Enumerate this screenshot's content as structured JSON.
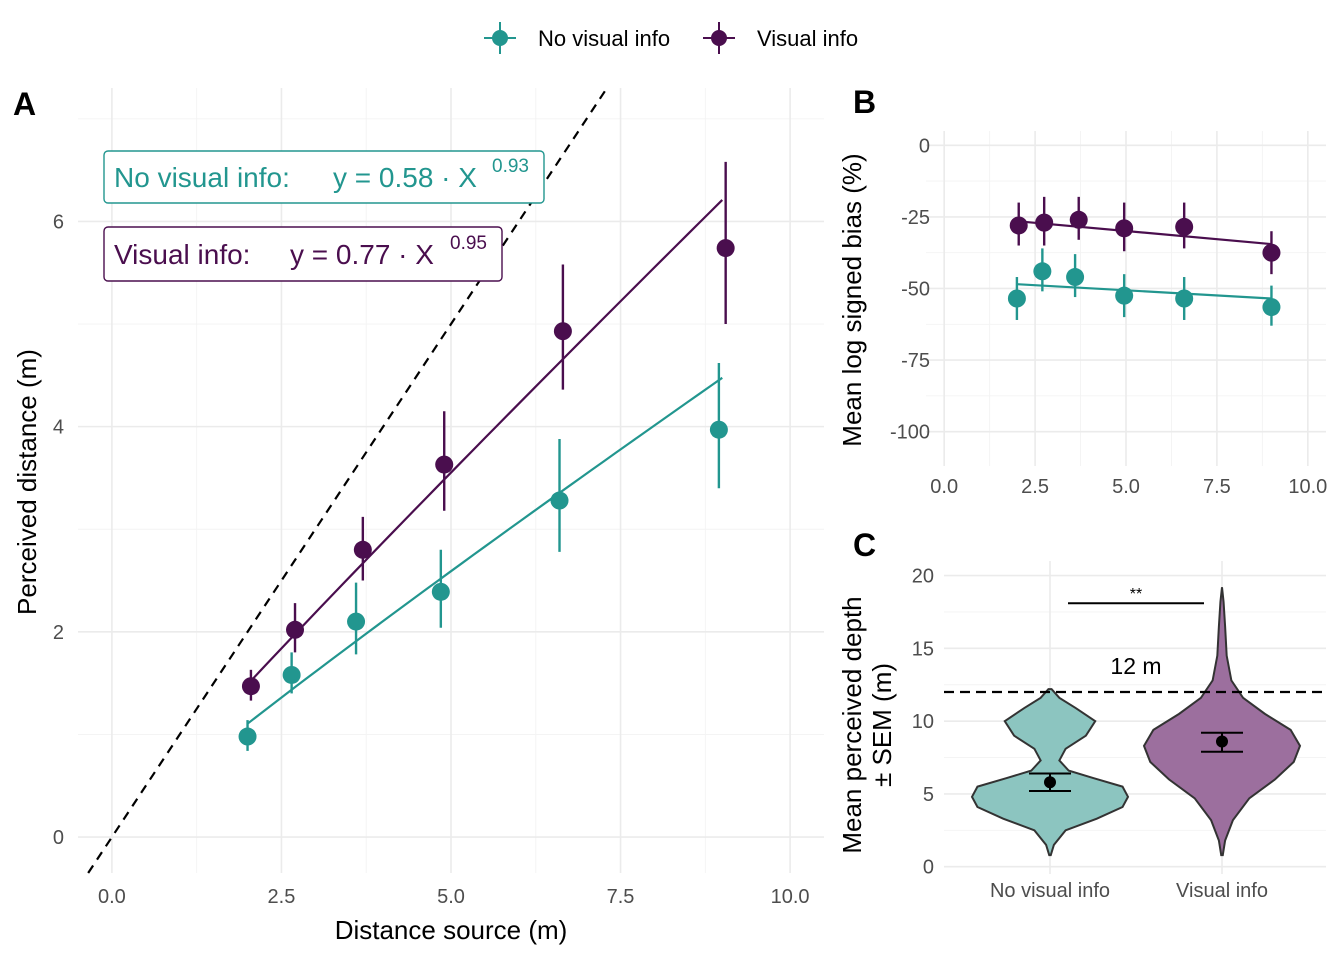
{
  "colors": {
    "no_visual": "#22968F",
    "visual": "#4A0E4E",
    "no_visual_fill": "#8CC5C0",
    "visual_fill": "#9C6F9E",
    "identity_line": "#000000"
  },
  "legend": {
    "items": [
      {
        "label": "No visual info",
        "color": "#22968F"
      },
      {
        "label": "Visual info",
        "color": "#4A0E4E"
      }
    ]
  },
  "chart_data": [
    {
      "panel": "A",
      "type": "scatter",
      "xlabel": "Distance source (m)",
      "ylabel": "Perceived distance (m)",
      "xlim": [
        -0.5,
        10.5
      ],
      "ylim": [
        -0.35,
        7.3
      ],
      "x_ticks": [
        "0.0",
        "2.5",
        "5.0",
        "7.5",
        "10.0"
      ],
      "y_ticks": [
        "0",
        "2",
        "4",
        "6"
      ],
      "x_tick_values": [
        0,
        2.5,
        5,
        7.5,
        10
      ],
      "y_tick_values": [
        0,
        2,
        4,
        6
      ],
      "identity_line": true,
      "grid": true,
      "annotations": [
        {
          "label": "No visual info:",
          "formula_prefix": "y = 0.58 · X",
          "exponent": "0.93",
          "color": "#22968F"
        },
        {
          "label": "Visual info:",
          "formula_prefix": "y = 0.77 · X",
          "exponent": "0.95",
          "color": "#4A0E4E"
        }
      ],
      "series": [
        {
          "name": "No visual info",
          "color": "#22968F",
          "points": [
            {
              "x": 2.0,
              "y": 0.98,
              "lo": 0.84,
              "hi": 1.14
            },
            {
              "x": 2.65,
              "y": 1.58,
              "lo": 1.4,
              "hi": 1.8
            },
            {
              "x": 3.6,
              "y": 2.1,
              "lo": 1.78,
              "hi": 2.48
            },
            {
              "x": 4.85,
              "y": 2.39,
              "lo": 2.04,
              "hi": 2.8
            },
            {
              "x": 6.6,
              "y": 3.28,
              "lo": 2.78,
              "hi": 3.88
            },
            {
              "x": 8.95,
              "y": 3.97,
              "lo": 3.4,
              "hi": 4.62
            }
          ],
          "fit": {
            "a": 0.58,
            "b": 0.93,
            "x_from": 2.0,
            "x_to": 9.0
          }
        },
        {
          "name": "Visual info",
          "color": "#4A0E4E",
          "points": [
            {
              "x": 2.05,
              "y": 1.47,
              "lo": 1.33,
              "hi": 1.63
            },
            {
              "x": 2.7,
              "y": 2.02,
              "lo": 1.8,
              "hi": 2.28
            },
            {
              "x": 3.7,
              "y": 2.8,
              "lo": 2.5,
              "hi": 3.12
            },
            {
              "x": 4.9,
              "y": 3.63,
              "lo": 3.18,
              "hi": 4.15
            },
            {
              "x": 6.65,
              "y": 4.93,
              "lo": 4.36,
              "hi": 5.58
            },
            {
              "x": 9.05,
              "y": 5.74,
              "lo": 5.0,
              "hi": 6.58
            }
          ],
          "fit": {
            "a": 0.77,
            "b": 0.95,
            "x_from": 2.0,
            "x_to": 9.0
          }
        }
      ]
    },
    {
      "panel": "B",
      "type": "scatter",
      "xlabel": "",
      "ylabel": "Mean log signed bias (%)",
      "xlim": [
        -0.5,
        10.5
      ],
      "ylim": [
        -112,
        5
      ],
      "x_ticks": [
        "0.0",
        "2.5",
        "5.0",
        "7.5",
        "10.0"
      ],
      "y_ticks": [
        "0",
        "-25",
        "-50",
        "-75",
        "-100"
      ],
      "x_tick_values": [
        0,
        2.5,
        5,
        7.5,
        10
      ],
      "y_tick_values": [
        0,
        -25,
        -50,
        -75,
        -100
      ],
      "grid": true,
      "series": [
        {
          "name": "No visual info",
          "color": "#22968F",
          "points": [
            {
              "x": 2.0,
              "y": -53.5,
              "lo": -61,
              "hi": -46
            },
            {
              "x": 2.7,
              "y": -44.0,
              "lo": -51,
              "hi": -36
            },
            {
              "x": 3.6,
              "y": -46.0,
              "lo": -53,
              "hi": -38
            },
            {
              "x": 4.95,
              "y": -52.5,
              "lo": -60,
              "hi": -45
            },
            {
              "x": 6.6,
              "y": -53.5,
              "lo": -61,
              "hi": -46
            },
            {
              "x": 9.0,
              "y": -56.5,
              "lo": -63,
              "hi": -49
            }
          ],
          "trend": {
            "x_from": 2.0,
            "y_from": -48.5,
            "x_to": 9.0,
            "y_to": -53.5
          }
        },
        {
          "name": "Visual info",
          "color": "#4A0E4E",
          "points": [
            {
              "x": 2.05,
              "y": -28.0,
              "lo": -35,
              "hi": -20
            },
            {
              "x": 2.75,
              "y": -27.0,
              "lo": -35,
              "hi": -18
            },
            {
              "x": 3.7,
              "y": -26.0,
              "lo": -33,
              "hi": -18
            },
            {
              "x": 4.95,
              "y": -29.0,
              "lo": -37,
              "hi": -20
            },
            {
              "x": 6.6,
              "y": -28.5,
              "lo": -36,
              "hi": -20
            },
            {
              "x": 9.0,
              "y": -37.5,
              "lo": -45,
              "hi": -30
            }
          ],
          "trend": {
            "x_from": 2.0,
            "y_from": -26.5,
            "x_to": 9.0,
            "y_to": -34.5
          }
        }
      ]
    },
    {
      "panel": "C",
      "type": "violin",
      "xlabel": "",
      "ylabel_lines": [
        "Mean perceived depth",
        "± SEM (m)"
      ],
      "ylim": [
        -0.5,
        21
      ],
      "y_ticks": [
        "0",
        "5",
        "10",
        "15",
        "20"
      ],
      "y_tick_values": [
        0,
        5,
        10,
        15,
        20
      ],
      "categories": [
        "No visual info",
        "Visual info"
      ],
      "reference_line": {
        "y": 12,
        "label": "12 m"
      },
      "significance": {
        "label": "**",
        "y": 18.1
      },
      "grid": true,
      "groups": [
        {
          "name": "No visual info",
          "color": "#8CC5C0",
          "mean": 5.8,
          "sem_lo": 5.2,
          "sem_hi": 6.4,
          "density": [
            [
              0.8,
              0.01
            ],
            [
              1.5,
              0.05
            ],
            [
              2.5,
              0.2
            ],
            [
              3.3,
              0.6
            ],
            [
              4.1,
              0.93
            ],
            [
              4.8,
              1.0
            ],
            [
              5.5,
              0.93
            ],
            [
              6.1,
              0.55
            ],
            [
              6.6,
              0.24
            ],
            [
              7.3,
              0.12
            ],
            [
              8.1,
              0.2
            ],
            [
              9.0,
              0.46
            ],
            [
              10.0,
              0.58
            ],
            [
              10.9,
              0.33
            ],
            [
              11.6,
              0.12
            ],
            [
              12.2,
              0.02
            ]
          ]
        },
        {
          "name": "Visual info",
          "color": "#9C6F9E",
          "mean": 8.6,
          "sem_lo": 7.9,
          "sem_hi": 9.2,
          "density": [
            [
              0.8,
              0.01
            ],
            [
              1.8,
              0.04
            ],
            [
              3.2,
              0.14
            ],
            [
              4.7,
              0.35
            ],
            [
              6.0,
              0.68
            ],
            [
              7.2,
              0.92
            ],
            [
              8.3,
              1.0
            ],
            [
              9.4,
              0.88
            ],
            [
              10.5,
              0.55
            ],
            [
              11.6,
              0.27
            ],
            [
              12.8,
              0.12
            ],
            [
              14.5,
              0.06
            ],
            [
              16.5,
              0.04
            ],
            [
              18.2,
              0.02
            ],
            [
              19.2,
              0.0
            ]
          ]
        }
      ]
    }
  ],
  "panels": {
    "A": {
      "letter": "A"
    },
    "B": {
      "letter": "B"
    },
    "C": {
      "letter": "C"
    }
  }
}
